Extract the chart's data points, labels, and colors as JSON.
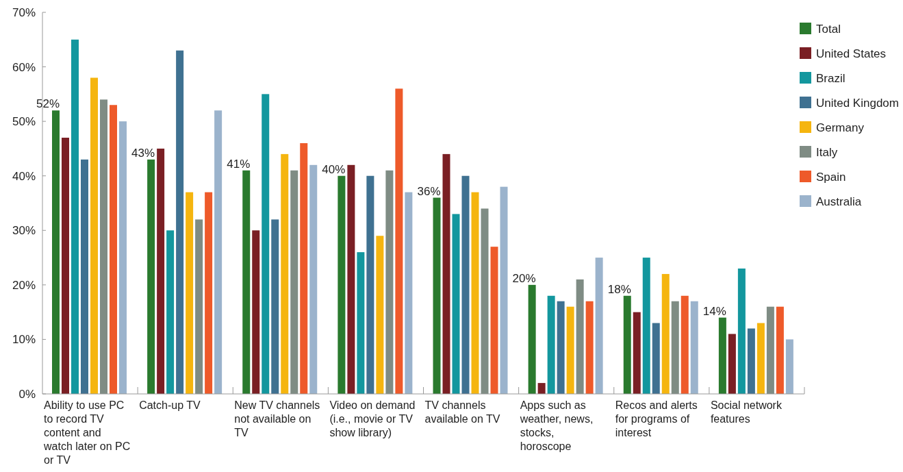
{
  "chart_data": {
    "type": "bar",
    "categories": [
      "Ability to use PC to record TV content and watch later on PC or TV",
      "Catch-up TV",
      "New TV channels not available on TV",
      "Video on demand (i.e., movie or TV show library)",
      "TV channels available on TV",
      "Apps such as weather, news, stocks, horoscope",
      "Recos and alerts for programs of interest",
      "Social network features"
    ],
    "series": [
      {
        "name": "Total",
        "color": "#2a7a2e",
        "values": [
          52,
          43,
          41,
          40,
          36,
          20,
          18,
          14
        ],
        "value_labels": [
          "52%",
          "43%",
          "41%",
          "40%",
          "36%",
          "20%",
          "18%",
          "14%"
        ]
      },
      {
        "name": "United States",
        "color": "#7a1f24",
        "values": [
          47,
          45,
          30,
          42,
          44,
          2,
          15,
          11
        ]
      },
      {
        "name": "Brazil",
        "color": "#13979e",
        "values": [
          65,
          30,
          55,
          26,
          33,
          18,
          25,
          23
        ]
      },
      {
        "name": "United Kingdom",
        "color": "#3f7191",
        "values": [
          43,
          63,
          32,
          40,
          40,
          17,
          13,
          12
        ]
      },
      {
        "name": "Germany",
        "color": "#f5b50f",
        "values": [
          58,
          37,
          44,
          29,
          37,
          16,
          22,
          13
        ]
      },
      {
        "name": "Italy",
        "color": "#7f8c84",
        "values": [
          54,
          32,
          41,
          41,
          34,
          21,
          17,
          16
        ]
      },
      {
        "name": "Spain",
        "color": "#ee5a2a",
        "values": [
          53,
          37,
          46,
          56,
          27,
          17,
          18,
          16
        ]
      },
      {
        "name": "Australia",
        "color": "#9bb3cc",
        "values": [
          50,
          52,
          42,
          37,
          38,
          25,
          17,
          10
        ]
      }
    ],
    "ylim": [
      0,
      70
    ],
    "yticks": [
      {
        "value": 0,
        "label": "0%"
      },
      {
        "value": 10,
        "label": "10%"
      },
      {
        "value": 20,
        "label": "20%"
      },
      {
        "value": 30,
        "label": "30%"
      },
      {
        "value": 40,
        "label": "40%"
      },
      {
        "value": 50,
        "label": "50%"
      },
      {
        "value": 60,
        "label": "60%"
      },
      {
        "value": 70,
        "label": "70%"
      }
    ],
    "grid": false,
    "legend": "right"
  }
}
